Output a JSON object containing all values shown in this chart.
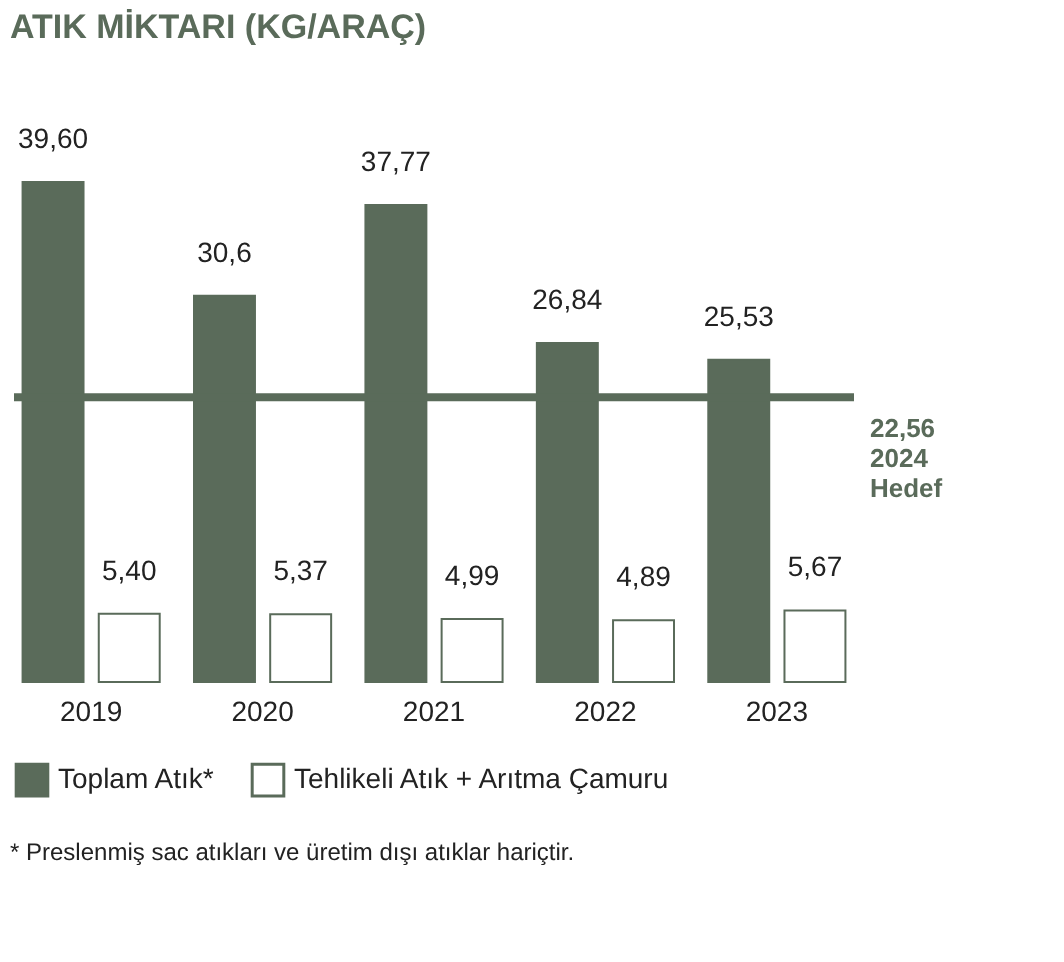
{
  "chart_data": {
    "type": "bar",
    "title": "ATIK MİKTARI (KG/ARAÇ)",
    "categories": [
      "2019",
      "2020",
      "2021",
      "2022",
      "2023"
    ],
    "series": [
      {
        "name": "Toplam Atık*",
        "color": "#5a6b5a",
        "values": [
          39.6,
          30.6,
          37.77,
          26.84,
          25.53
        ],
        "value_labels": [
          "39,60",
          "30,6",
          "37,77",
          "26,84",
          "25,53"
        ]
      },
      {
        "name": "Tehlikeli Atık + Arıtma Çamuru",
        "color": "#ffffff",
        "values": [
          5.4,
          5.37,
          4.99,
          4.89,
          5.67
        ],
        "value_labels": [
          "5,40",
          "5,37",
          "4,99",
          "4,89",
          "5,67"
        ]
      }
    ],
    "ref_lines": [
      {
        "axis": "y",
        "value": 22.56,
        "label": "22,56\n2024\nHedef",
        "color": "#5a6b5a"
      }
    ],
    "annotations": [
      "* Preslenmiş sac atıkları ve üretim dışı atıklar hariçtir."
    ],
    "tick_labels": "x",
    "legend": "bottom"
  }
}
